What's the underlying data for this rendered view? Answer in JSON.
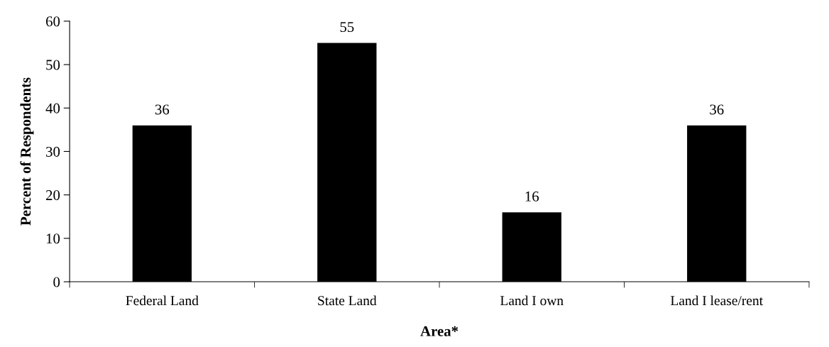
{
  "chart_data": {
    "type": "bar",
    "categories": [
      "Federal Land",
      "State Land",
      "Land I own",
      "Land I lease/rent"
    ],
    "values": [
      36,
      55,
      16,
      36
    ],
    "color": "#000000",
    "xlabel": "Area*",
    "ylabel": "Percent of Respondents",
    "ylim": [
      0,
      60
    ],
    "yticks": [
      0,
      10,
      20,
      30,
      40,
      50,
      60
    ],
    "data_labels": true,
    "grid": false,
    "legend": false
  }
}
